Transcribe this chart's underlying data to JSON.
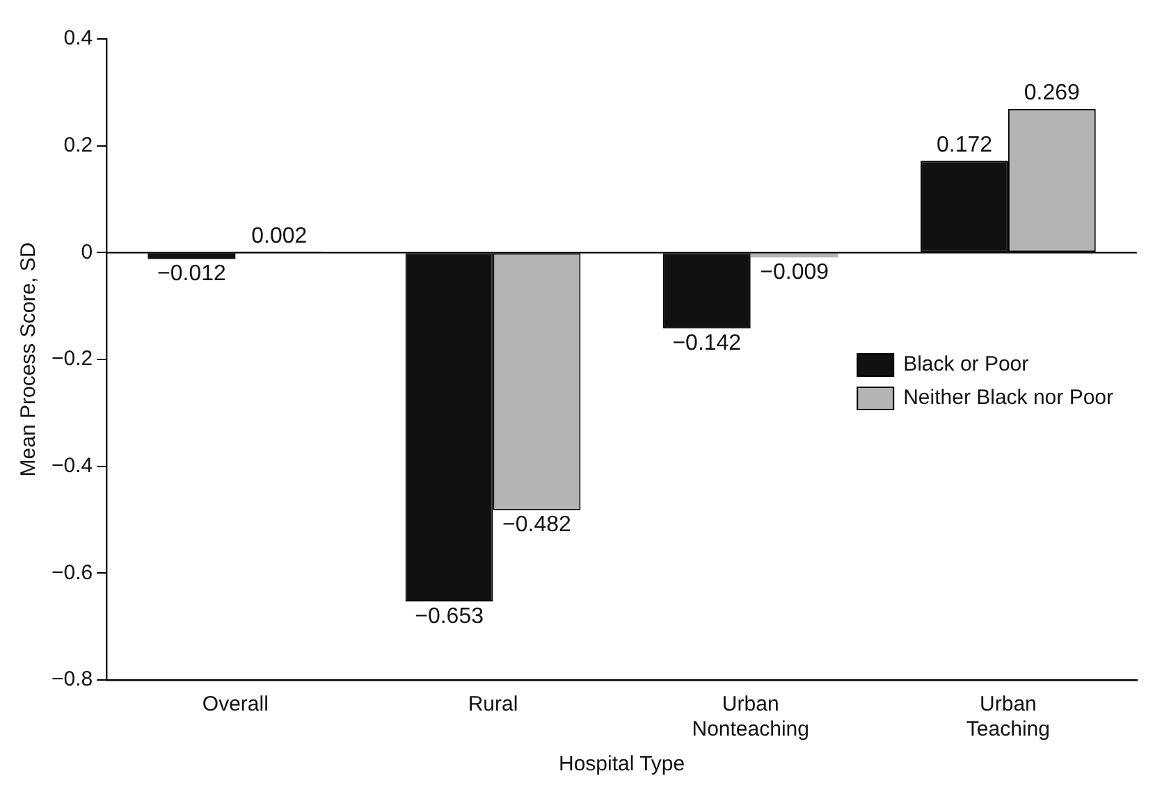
{
  "chart_data": {
    "type": "bar",
    "xlabel": "Hospital Type",
    "ylabel": "Mean Process Score, SD",
    "categories": [
      "Overall",
      "Rural",
      "Urban Nonteaching",
      "Urban Teaching"
    ],
    "series": [
      {
        "name": "Black or Poor",
        "color": "#111111",
        "values": [
          -0.012,
          -0.653,
          -0.142,
          0.172
        ]
      },
      {
        "name": "Neither Black nor Poor",
        "color": "#b4b4b4",
        "values": [
          0.002,
          -0.482,
          -0.009,
          0.269
        ]
      }
    ],
    "ylim": [
      -0.8,
      0.4
    ],
    "yticks": [
      -0.8,
      -0.6,
      -0.4,
      -0.2,
      0,
      0.2,
      0.4
    ],
    "ref_lines": [
      {
        "axis": "y",
        "value": 0
      }
    ],
    "data_labels": true,
    "grid": false,
    "legend": "right"
  }
}
